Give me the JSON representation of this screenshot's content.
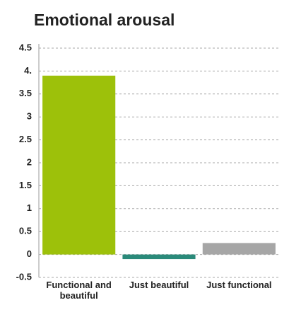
{
  "chart_data": {
    "type": "bar",
    "title": "Emotional arousal",
    "categories": [
      "Functional and beautiful",
      "Just beautiful",
      "Just functional"
    ],
    "values": [
      3.9,
      -0.1,
      0.25
    ],
    "colors": [
      "#9dc10a",
      "#2a8a7a",
      "#a6a6a6"
    ],
    "ylim": [
      -0.5,
      4.5
    ],
    "yticks": [
      -0.5,
      0,
      0.5,
      1,
      1.5,
      2,
      2.5,
      3,
      3.5,
      {
        "value": 4,
        "label": "4."
      },
      4.5
    ],
    "grid": true
  }
}
